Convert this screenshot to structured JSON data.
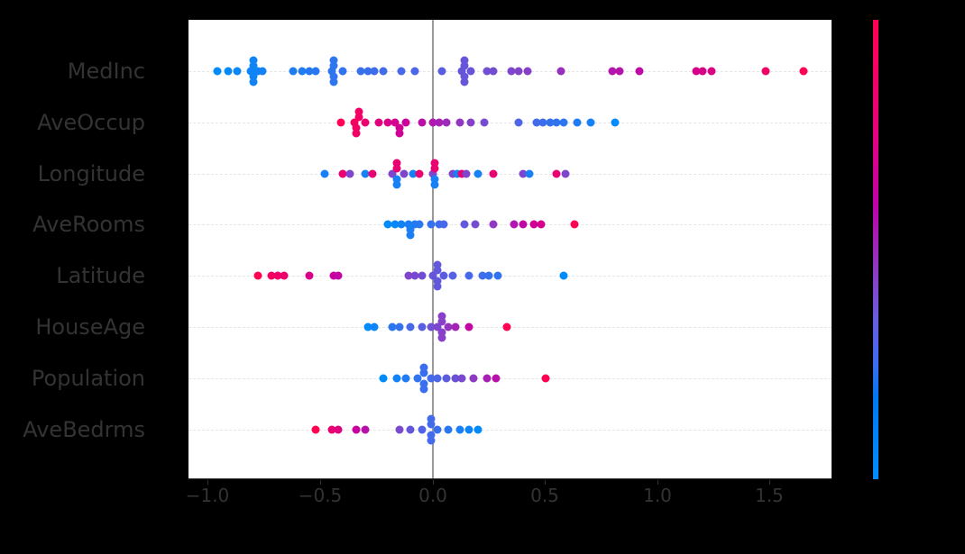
{
  "chart_data": {
    "type": "scatter",
    "subtype": "shap-beeswarm-summary",
    "title": "",
    "xlabel": "",
    "ylabel": "",
    "xlim": [
      -1.09,
      1.78
    ],
    "x_ticks": [
      -1.0,
      -0.5,
      0.0,
      0.5,
      1.0,
      1.5
    ],
    "x_tick_labels": [
      "−1.0",
      "−0.5",
      "0.0",
      "0.5",
      "1.0",
      "1.5"
    ],
    "features": [
      "MedInc",
      "AveOccup",
      "Longitude",
      "AveRooms",
      "Latitude",
      "HouseAge",
      "Population",
      "AveBedrms"
    ],
    "grid": "dashed horizontal per feature",
    "zero_line": 0.0,
    "colorbar": {
      "low_color": "#008bfb",
      "high_color": "#ff0052",
      "labels_visible": false
    },
    "series": [
      {
        "name": "MedInc",
        "points": [
          [
            -0.96,
            0.0
          ],
          [
            -0.91,
            0.0
          ],
          [
            -0.87,
            0.0
          ],
          [
            -0.81,
            0.0
          ],
          [
            -0.8,
            0.2
          ],
          [
            -0.8,
            -0.2
          ],
          [
            -0.78,
            0.0
          ],
          [
            -0.76,
            0.0
          ],
          [
            -0.62,
            0.0
          ],
          [
            -0.58,
            0.0
          ],
          [
            -0.55,
            0.0
          ],
          [
            -0.52,
            0.0
          ],
          [
            -0.45,
            0.0
          ],
          [
            -0.44,
            0.2
          ],
          [
            -0.44,
            -0.2
          ],
          [
            -0.4,
            0.0
          ],
          [
            -0.32,
            0.0
          ],
          [
            -0.29,
            0.0
          ],
          [
            -0.26,
            0.0
          ],
          [
            -0.22,
            0.0
          ],
          [
            -0.14,
            0.0
          ],
          [
            -0.08,
            0.0
          ],
          [
            0.04,
            0.0
          ],
          [
            0.13,
            0.0
          ],
          [
            0.14,
            0.2
          ],
          [
            0.14,
            -0.2
          ],
          [
            0.17,
            0.0
          ],
          [
            0.24,
            0.0
          ],
          [
            0.27,
            0.0
          ],
          [
            0.35,
            0.0
          ],
          [
            0.38,
            0.0
          ],
          [
            0.42,
            0.0
          ],
          [
            0.57,
            0.0
          ],
          [
            0.8,
            0.0
          ],
          [
            0.83,
            0.0
          ],
          [
            0.92,
            0.0
          ],
          [
            1.17,
            0.0
          ],
          [
            1.2,
            0.0
          ],
          [
            1.24,
            0.0
          ],
          [
            1.48,
            0.0
          ],
          [
            1.65,
            0.0
          ]
        ],
        "colors": "low→high left→right"
      },
      {
        "name": "AveOccup",
        "points": [
          [
            -0.41,
            0.0
          ],
          [
            -0.35,
            0.0
          ],
          [
            -0.34,
            0.2
          ],
          [
            -0.33,
            -0.2
          ],
          [
            -0.3,
            0.0
          ],
          [
            -0.24,
            0.0
          ],
          [
            -0.2,
            0.0
          ],
          [
            -0.17,
            0.0
          ],
          [
            -0.15,
            0.2
          ],
          [
            -0.12,
            0.0
          ],
          [
            -0.05,
            0.0
          ],
          [
            0.0,
            0.0
          ],
          [
            0.03,
            0.0
          ],
          [
            0.06,
            0.0
          ],
          [
            0.12,
            0.0
          ],
          [
            0.17,
            0.0
          ],
          [
            0.23,
            0.0
          ],
          [
            0.38,
            0.0
          ],
          [
            0.46,
            0.0
          ],
          [
            0.49,
            0.0
          ],
          [
            0.52,
            0.0
          ],
          [
            0.55,
            0.0
          ],
          [
            0.58,
            0.0
          ],
          [
            0.64,
            0.0
          ],
          [
            0.7,
            0.0
          ],
          [
            0.81,
            0.0
          ]
        ],
        "colors": "high→low left→right"
      },
      {
        "name": "Longitude",
        "points": [
          [
            -0.48,
            0.0
          ],
          [
            -0.4,
            0.0
          ],
          [
            -0.37,
            0.0
          ],
          [
            -0.3,
            0.0
          ],
          [
            -0.27,
            0.0
          ],
          [
            -0.18,
            0.0
          ],
          [
            -0.16,
            0.2
          ],
          [
            -0.16,
            -0.2
          ],
          [
            -0.13,
            0.0
          ],
          [
            -0.09,
            0.0
          ],
          [
            -0.06,
            0.0
          ],
          [
            0.0,
            0.0
          ],
          [
            0.01,
            0.2
          ],
          [
            0.01,
            -0.2
          ],
          [
            0.09,
            0.0
          ],
          [
            0.11,
            0.0
          ],
          [
            0.13,
            0.0
          ],
          [
            0.15,
            0.0
          ],
          [
            0.2,
            0.0
          ],
          [
            0.27,
            0.0
          ],
          [
            0.4,
            0.0
          ],
          [
            0.43,
            0.0
          ],
          [
            0.55,
            0.0
          ],
          [
            0.59,
            0.0
          ]
        ],
        "colors": "mixed"
      },
      {
        "name": "AveRooms",
        "points": [
          [
            -0.2,
            0.0
          ],
          [
            -0.17,
            0.0
          ],
          [
            -0.14,
            0.0
          ],
          [
            -0.11,
            0.0
          ],
          [
            -0.1,
            0.2
          ],
          [
            -0.08,
            0.0
          ],
          [
            -0.06,
            0.0
          ],
          [
            -0.01,
            0.0
          ],
          [
            0.03,
            0.0
          ],
          [
            0.05,
            0.0
          ],
          [
            0.14,
            0.0
          ],
          [
            0.19,
            0.0
          ],
          [
            0.27,
            0.0
          ],
          [
            0.36,
            0.0
          ],
          [
            0.4,
            0.0
          ],
          [
            0.45,
            0.0
          ],
          [
            0.48,
            0.0
          ],
          [
            0.63,
            0.0
          ]
        ],
        "colors": "low-mid left, high right"
      },
      {
        "name": "Latitude",
        "points": [
          [
            -0.78,
            0.0
          ],
          [
            -0.72,
            0.0
          ],
          [
            -0.69,
            0.0
          ],
          [
            -0.66,
            0.0
          ],
          [
            -0.55,
            0.0
          ],
          [
            -0.44,
            0.0
          ],
          [
            -0.42,
            0.0
          ],
          [
            -0.11,
            0.0
          ],
          [
            -0.08,
            0.0
          ],
          [
            -0.05,
            0.0
          ],
          [
            0.0,
            0.0
          ],
          [
            0.02,
            0.2
          ],
          [
            0.02,
            -0.2
          ],
          [
            0.05,
            0.0
          ],
          [
            0.09,
            0.0
          ],
          [
            0.16,
            0.0
          ],
          [
            0.22,
            0.0
          ],
          [
            0.25,
            0.0
          ],
          [
            0.29,
            0.0
          ],
          [
            0.58,
            0.0
          ]
        ],
        "colors": "high left, mixed center"
      },
      {
        "name": "HouseAge",
        "points": [
          [
            -0.29,
            0.0
          ],
          [
            -0.26,
            0.0
          ],
          [
            -0.18,
            0.0
          ],
          [
            -0.15,
            0.0
          ],
          [
            -0.1,
            0.0
          ],
          [
            -0.05,
            0.0
          ],
          [
            -0.01,
            0.0
          ],
          [
            0.02,
            0.0
          ],
          [
            0.04,
            0.2
          ],
          [
            0.04,
            -0.2
          ],
          [
            0.07,
            0.0
          ],
          [
            0.1,
            0.0
          ],
          [
            0.16,
            0.0
          ],
          [
            0.33,
            0.0
          ]
        ],
        "colors": "low left, high right"
      },
      {
        "name": "Population",
        "points": [
          [
            -0.22,
            0.0
          ],
          [
            -0.16,
            0.0
          ],
          [
            -0.12,
            0.0
          ],
          [
            -0.07,
            0.0
          ],
          [
            -0.04,
            0.2
          ],
          [
            -0.04,
            -0.2
          ],
          [
            -0.01,
            0.0
          ],
          [
            0.02,
            0.0
          ],
          [
            0.06,
            0.0
          ],
          [
            0.1,
            0.0
          ],
          [
            0.13,
            0.0
          ],
          [
            0.18,
            0.0
          ],
          [
            0.24,
            0.0
          ],
          [
            0.28,
            0.0
          ],
          [
            0.5,
            0.0
          ]
        ],
        "colors": "low left, high right"
      },
      {
        "name": "AveBedrms",
        "points": [
          [
            -0.52,
            0.0
          ],
          [
            -0.45,
            0.0
          ],
          [
            -0.42,
            0.0
          ],
          [
            -0.34,
            0.0
          ],
          [
            -0.3,
            0.0
          ],
          [
            -0.15,
            0.0
          ],
          [
            -0.1,
            0.0
          ],
          [
            -0.05,
            0.0
          ],
          [
            -0.01,
            0.2
          ],
          [
            -0.01,
            -0.2
          ],
          [
            0.02,
            0.0
          ],
          [
            0.07,
            0.0
          ],
          [
            0.12,
            0.0
          ],
          [
            0.16,
            0.0
          ],
          [
            0.2,
            0.0
          ]
        ],
        "colors": "high left, mixed right"
      }
    ]
  },
  "axis": {
    "ticks": [
      {
        "value": -1.0,
        "label": "−1.0"
      },
      {
        "value": -0.5,
        "label": "−0.5"
      },
      {
        "value": 0.0,
        "label": "0.0"
      },
      {
        "value": 0.5,
        "label": "0.5"
      },
      {
        "value": 1.0,
        "label": "1.0"
      },
      {
        "value": 1.5,
        "label": "1.5"
      }
    ]
  },
  "features": [
    {
      "key": "f0",
      "label": "MedInc"
    },
    {
      "key": "f1",
      "label": "AveOccup"
    },
    {
      "key": "f2",
      "label": "Longitude"
    },
    {
      "key": "f3",
      "label": "AveRooms"
    },
    {
      "key": "f4",
      "label": "Latitude"
    },
    {
      "key": "f5",
      "label": "HouseAge"
    },
    {
      "key": "f6",
      "label": "Population"
    },
    {
      "key": "f7",
      "label": "AveBedrms"
    }
  ],
  "colors": {
    "low": "#008bfb",
    "high": "#ff0052",
    "mid": "#8c3cc4"
  }
}
